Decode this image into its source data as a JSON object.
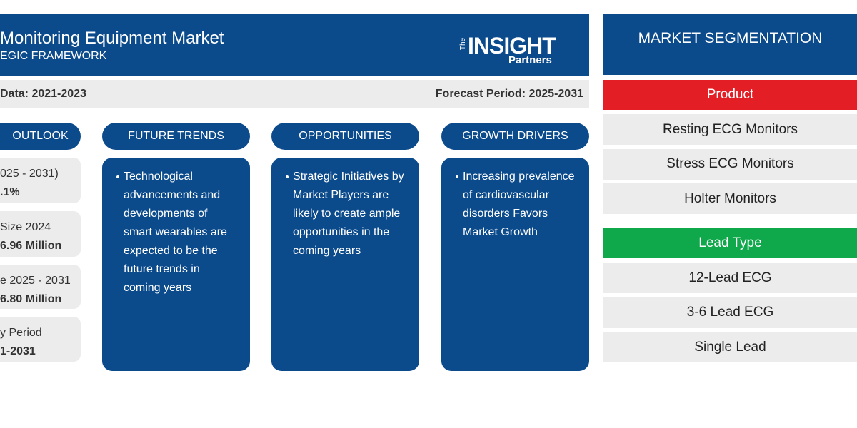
{
  "header": {
    "title": "Monitoring Equipment Market",
    "subtitle": "EGIC FRAMEWORK",
    "logo": {
      "small": "The",
      "main": "INSIGHT",
      "sub": "Partners"
    }
  },
  "period_bar": {
    "historic": "Data: 2021-2023",
    "forecast": "Forecast Period: 2025-2031"
  },
  "outlook": {
    "title": "OUTLOOK",
    "cards": [
      [
        "025 - 2031)",
        ".1%"
      ],
      [
        "Size 2024",
        "6.96 Million"
      ],
      [
        "e 2025 - 2031",
        "6.80 Million"
      ],
      [
        "y Period",
        "1-2031"
      ]
    ]
  },
  "columns": [
    {
      "title": "FUTURE TRENDS",
      "text": "Technological advancements and developments of smart wearables are expected to be the future trends in coming years"
    },
    {
      "title": "OPPORTUNITIES",
      "text": "Strategic Initiatives by Market Players are likely to create ample opportunities in the coming years"
    },
    {
      "title": "GROWTH DRIVERS",
      "text": "Increasing prevalence of cardiovascular disorders Favors Market Growth"
    }
  ],
  "segmentation": {
    "title": "MARKET SEGMENTATION",
    "groups": [
      {
        "name": "Product",
        "items": [
          "Resting ECG Monitors",
          "Stress ECG Monitors",
          "Holter Monitors"
        ]
      },
      {
        "name": "Lead Type",
        "items": [
          "12-Lead ECG",
          "3-6 Lead ECG",
          "Single Lead"
        ]
      }
    ]
  }
}
